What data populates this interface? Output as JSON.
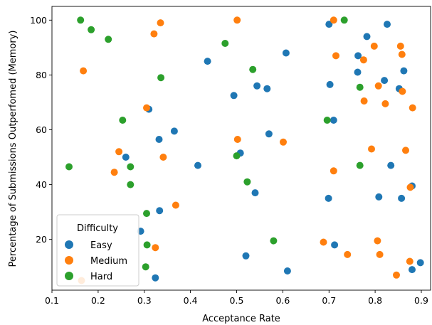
{
  "chart_data": {
    "type": "scatter",
    "title": "",
    "xlabel": "Acceptance Rate",
    "ylabel": "Percentage of Submissions Outperfomed (Memory)",
    "xlim": [
      0.1,
      0.92
    ],
    "ylim": [
      1.5,
      105
    ],
    "xticks": [
      "0.1",
      "0.2",
      "0.3",
      "0.4",
      "0.5",
      "0.6",
      "0.7",
      "0.8",
      "0.9"
    ],
    "yticks": [
      "20",
      "40",
      "60",
      "80",
      "100"
    ],
    "grid": false,
    "legend": {
      "title": "Difficulty",
      "position": "lower-left"
    },
    "series": [
      {
        "name": "Easy",
        "color": "#1f77b4",
        "points": [
          [
            0.7,
            98.5
          ],
          [
            0.826,
            98.5
          ],
          [
            0.782,
            94.0
          ],
          [
            0.607,
            88.0
          ],
          [
            0.437,
            85.0
          ],
          [
            0.763,
            87.0
          ],
          [
            0.762,
            81.0
          ],
          [
            0.82,
            78.0
          ],
          [
            0.862,
            81.5
          ],
          [
            0.852,
            75.0
          ],
          [
            0.702,
            76.5
          ],
          [
            0.544,
            76.0
          ],
          [
            0.566,
            75.0
          ],
          [
            0.494,
            72.5
          ],
          [
            0.31,
            67.5
          ],
          [
            0.71,
            63.5
          ],
          [
            0.365,
            59.5
          ],
          [
            0.332,
            56.5
          ],
          [
            0.57,
            58.5
          ],
          [
            0.508,
            51.5
          ],
          [
            0.26,
            50.0
          ],
          [
            0.416,
            47.0
          ],
          [
            0.834,
            47.0
          ],
          [
            0.88,
            39.5
          ],
          [
            0.54,
            37.0
          ],
          [
            0.699,
            35.0
          ],
          [
            0.808,
            35.5
          ],
          [
            0.857,
            35.0
          ],
          [
            0.333,
            30.5
          ],
          [
            0.292,
            23.0
          ],
          [
            0.712,
            18.0
          ],
          [
            0.52,
            14.0
          ],
          [
            0.61,
            8.5
          ],
          [
            0.324,
            6.0
          ],
          [
            0.88,
            9.0
          ],
          [
            0.898,
            11.5
          ]
        ]
      },
      {
        "name": "Medium",
        "color": "#ff7f0e",
        "points": [
          [
            0.501,
            100.0
          ],
          [
            0.71,
            100.0
          ],
          [
            0.335,
            99.0
          ],
          [
            0.321,
            95.0
          ],
          [
            0.798,
            90.5
          ],
          [
            0.855,
            90.5
          ],
          [
            0.715,
            87.0
          ],
          [
            0.858,
            87.5
          ],
          [
            0.775,
            85.5
          ],
          [
            0.168,
            81.5
          ],
          [
            0.807,
            76.0
          ],
          [
            0.859,
            74.0
          ],
          [
            0.776,
            70.5
          ],
          [
            0.822,
            69.5
          ],
          [
            0.881,
            68.0
          ],
          [
            0.305,
            68.0
          ],
          [
            0.502,
            56.5
          ],
          [
            0.601,
            55.5
          ],
          [
            0.245,
            52.0
          ],
          [
            0.341,
            50.0
          ],
          [
            0.792,
            53.0
          ],
          [
            0.866,
            52.5
          ],
          [
            0.235,
            44.5
          ],
          [
            0.71,
            45.0
          ],
          [
            0.876,
            39.0
          ],
          [
            0.368,
            32.5
          ],
          [
            0.324,
            17.0
          ],
          [
            0.688,
            19.0
          ],
          [
            0.805,
            19.5
          ],
          [
            0.74,
            14.5
          ],
          [
            0.81,
            14.5
          ],
          [
            0.875,
            12.0
          ],
          [
            0.846,
            7.0
          ],
          [
            0.164,
            5.0
          ]
        ]
      },
      {
        "name": "Hard",
        "color": "#2ca02c",
        "points": [
          [
            0.162,
            100.0
          ],
          [
            0.733,
            100.0
          ],
          [
            0.185,
            96.5
          ],
          [
            0.222,
            93.0
          ],
          [
            0.475,
            91.5
          ],
          [
            0.535,
            82.0
          ],
          [
            0.336,
            79.0
          ],
          [
            0.767,
            75.5
          ],
          [
            0.253,
            63.5
          ],
          [
            0.696,
            63.5
          ],
          [
            0.5,
            50.5
          ],
          [
            0.137,
            46.5
          ],
          [
            0.27,
            46.5
          ],
          [
            0.767,
            47.0
          ],
          [
            0.523,
            41.0
          ],
          [
            0.27,
            40.0
          ],
          [
            0.305,
            29.5
          ],
          [
            0.58,
            19.5
          ],
          [
            0.306,
            18.0
          ],
          [
            0.303,
            10.0
          ]
        ]
      }
    ]
  }
}
